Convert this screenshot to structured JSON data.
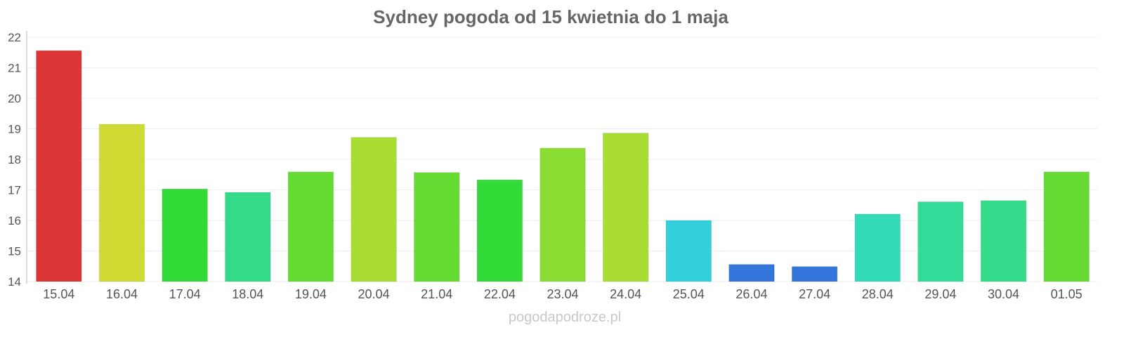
{
  "chart_data": {
    "type": "bar",
    "title": "Sydney pogoda od 15 kwietnia do 1 maja",
    "xlabel": "",
    "ylabel": "",
    "ylim": [
      14,
      22
    ],
    "yticks": [
      "14",
      "15",
      "16",
      "17",
      "18",
      "19",
      "20",
      "21",
      "22"
    ],
    "grid": true,
    "categories": [
      "15.04",
      "16.04",
      "17.04",
      "18.04",
      "19.04",
      "20.04",
      "21.04",
      "22.04",
      "23.04",
      "24.04",
      "25.04",
      "26.04",
      "27.04",
      "28.04",
      "29.04",
      "30.04",
      "01.05"
    ],
    "values": [
      21.56,
      19.15,
      17.03,
      16.92,
      17.59,
      18.72,
      17.57,
      17.33,
      18.37,
      18.86,
      16.0,
      14.56,
      14.49,
      16.21,
      16.61,
      16.65,
      17.59
    ],
    "colors": [
      "#db3535",
      "#cfdb33",
      "#33db39",
      "#33db88",
      "#66db33",
      "#aadd33",
      "#66db33",
      "#33db39",
      "#8add33",
      "#aadd33",
      "#33cfdb",
      "#3375db",
      "#3375db",
      "#33dbb8",
      "#33db99",
      "#33db8a",
      "#66db33"
    ]
  },
  "watermark": "pogodapodroze.pl"
}
